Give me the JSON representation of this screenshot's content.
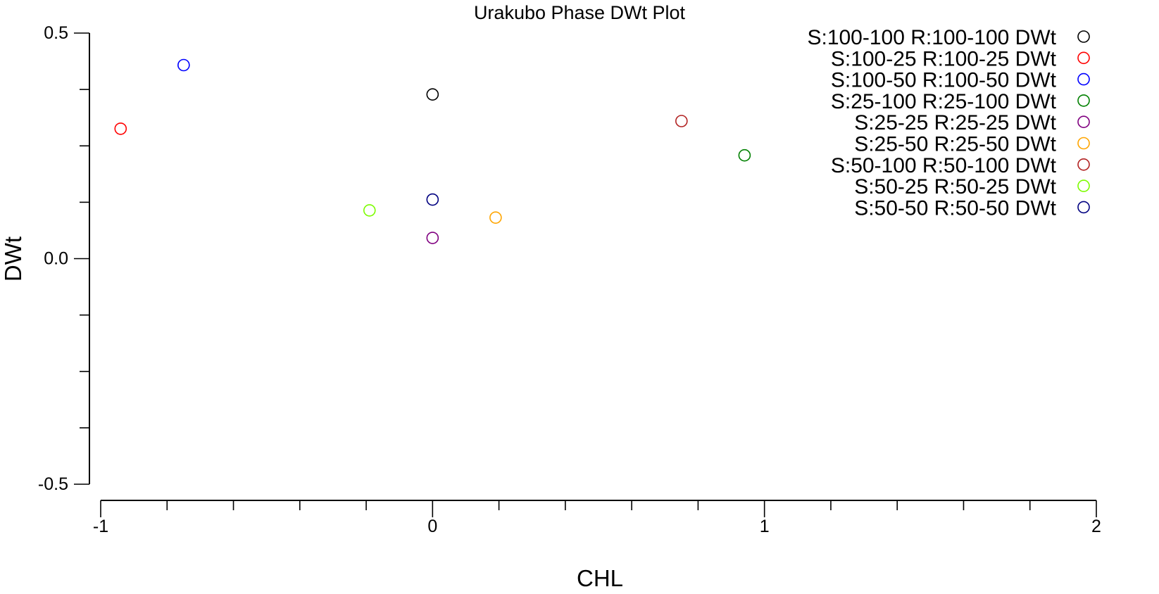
{
  "chart_data": {
    "type": "scatter",
    "title": "Urakubo Phase DWt Plot",
    "xlabel": "CHL",
    "ylabel": "DWt",
    "xlim": [
      -1,
      2
    ],
    "ylim": [
      -0.5,
      0.5
    ],
    "x_ticks": [
      "-1",
      "0",
      "1",
      "2"
    ],
    "y_ticks": [
      "0.5",
      "0.0",
      "-0.5"
    ],
    "grid": false,
    "marker": "open-circle",
    "legend_position": "top-right",
    "series": [
      {
        "name": "S:100-100 R:100-100 DWt",
        "color": "#000000",
        "points": [
          {
            "x": 0.0,
            "y": 0.364
          }
        ]
      },
      {
        "name": "S:100-25 R:100-25 DWt",
        "color": "#ff0000",
        "points": [
          {
            "x": -0.94,
            "y": 0.288
          }
        ]
      },
      {
        "name": "S:100-50 R:100-50 DWt",
        "color": "#0000ff",
        "points": [
          {
            "x": -0.75,
            "y": 0.429
          }
        ]
      },
      {
        "name": "S:25-100 R:25-100 DWt",
        "color": "#008000",
        "points": [
          {
            "x": 0.94,
            "y": 0.229
          }
        ]
      },
      {
        "name": "S:25-25 R:25-25 DWt",
        "color": "#800080",
        "points": [
          {
            "x": 0.0,
            "y": 0.046
          }
        ]
      },
      {
        "name": "S:25-50 R:25-50 DWt",
        "color": "#ffa500",
        "points": [
          {
            "x": 0.19,
            "y": 0.091
          }
        ]
      },
      {
        "name": "S:50-100 R:50-100 DWt",
        "color": "#b22222",
        "points": [
          {
            "x": 0.75,
            "y": 0.305
          }
        ]
      },
      {
        "name": "S:50-25 R:50-25 DWt",
        "color": "#7cfc00",
        "points": [
          {
            "x": -0.19,
            "y": 0.107
          }
        ]
      },
      {
        "name": "S:50-50 R:50-50 DWt",
        "color": "#000080",
        "points": [
          {
            "x": 0.0,
            "y": 0.131
          }
        ]
      }
    ]
  }
}
